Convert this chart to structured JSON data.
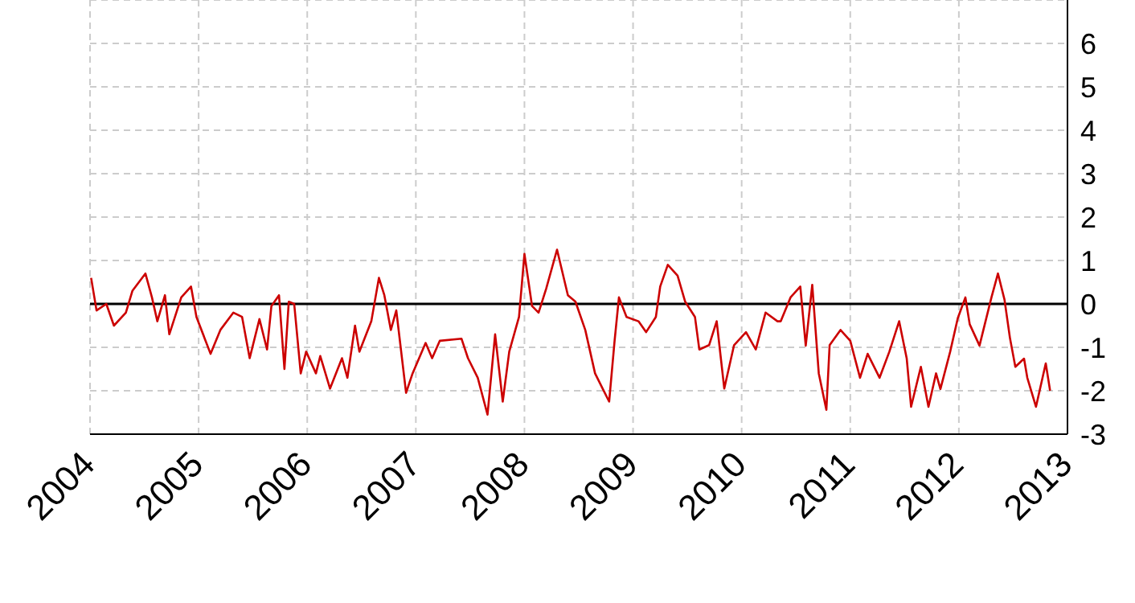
{
  "chart_data": {
    "type": "line",
    "x": [
      2004.01,
      2004.06,
      2004.15,
      2004.22,
      2004.33,
      2004.39,
      2004.51,
      2004.57,
      2004.62,
      2004.69,
      2004.73,
      2004.84,
      2004.93,
      2004.98,
      2005.11,
      2005.2,
      2005.32,
      2005.4,
      2005.47,
      2005.56,
      2005.63,
      2005.67,
      2005.74,
      2005.79,
      2005.83,
      2005.88,
      2005.94,
      2005.99,
      2006.08,
      2006.12,
      2006.21,
      2006.32,
      2006.37,
      2006.44,
      2006.48,
      2006.59,
      2006.66,
      2006.71,
      2006.77,
      2006.82,
      2006.91,
      2006.97,
      2007.09,
      2007.15,
      2007.22,
      2007.42,
      2007.48,
      2007.57,
      2007.66,
      2007.73,
      2007.8,
      2007.86,
      2007.95,
      2008.0,
      2008.07,
      2008.13,
      2008.2,
      2008.3,
      2008.4,
      2008.47,
      2008.56,
      2008.65,
      2008.72,
      2008.78,
      2008.83,
      2008.87,
      2008.94,
      2009.05,
      2009.12,
      2009.21,
      2009.25,
      2009.32,
      2009.41,
      2009.48,
      2009.57,
      2009.61,
      2009.7,
      2009.77,
      2009.84,
      2009.93,
      2010.04,
      2010.13,
      2010.22,
      2010.33,
      2010.36,
      2010.45,
      2010.54,
      2010.59,
      2010.65,
      2010.71,
      2010.78,
      2010.81,
      2010.91,
      2011.0,
      2011.09,
      2011.16,
      2011.27,
      2011.36,
      2011.45,
      2011.52,
      2011.56,
      2011.65,
      2011.72,
      2011.79,
      2011.83,
      2011.92,
      2011.99,
      2012.06,
      2012.1,
      2012.19,
      2012.3,
      2012.36,
      2012.42,
      2012.47,
      2012.52,
      2012.6,
      2012.63,
      2012.71,
      2012.8,
      2012.84
    ],
    "series": [
      {
        "color": "#cc0000",
        "values": [
          0.6,
          -0.15,
          0,
          -0.5,
          -0.2,
          0.3,
          0.7,
          0.15,
          -0.4,
          0.2,
          -0.7,
          0.15,
          0.4,
          -0.3,
          -1.15,
          -0.6,
          -0.2,
          -0.3,
          -1.25,
          -0.35,
          -1.05,
          -0.05,
          0.2,
          -1.5,
          0.05,
          0,
          -1.6,
          -1.1,
          -1.6,
          -1.2,
          -1.95,
          -1.25,
          -1.7,
          -0.5,
          -1.1,
          -0.4,
          0.6,
          0.2,
          -0.6,
          -0.15,
          -2.05,
          -1.6,
          -0.9,
          -1.25,
          -0.85,
          -0.8,
          -1.25,
          -1.7,
          -2.55,
          -0.7,
          -2.25,
          -1.1,
          -0.3,
          1.15,
          -0.05,
          -0.2,
          0.35,
          1.25,
          0.2,
          0.05,
          -0.6,
          -1.6,
          -1.95,
          -2.25,
          -0.85,
          0.15,
          -0.3,
          -0.4,
          -0.65,
          -0.3,
          0.4,
          0.9,
          0.65,
          0.05,
          -0.3,
          -1.05,
          -0.95,
          -0.4,
          -1.95,
          -0.95,
          -0.65,
          -1.05,
          -0.2,
          -0.4,
          -0.4,
          0.15,
          0.4,
          -0.96,
          0.44,
          -1.6,
          -2.44,
          -0.95,
          -0.6,
          -0.85,
          -1.7,
          -1.15,
          -1.7,
          -1.1,
          -0.4,
          -1.26,
          -2.37,
          -1.45,
          -2.37,
          -1.6,
          -1.96,
          -1.1,
          -0.33,
          0.15,
          -0.47,
          -0.96,
          0.15,
          0.7,
          0.1,
          -0.78,
          -1.45,
          -1.26,
          -1.7,
          -2.37,
          -1.37,
          -2.0
        ]
      }
    ],
    "xlim": [
      2004,
      2013
    ],
    "xticks": [
      2004,
      2005,
      2006,
      2007,
      2008,
      2009,
      2010,
      2011,
      2012,
      2013
    ],
    "ylim": [
      -3,
      7
    ],
    "yticks": [
      -3,
      -2,
      -1,
      0,
      1,
      2,
      3,
      4,
      5,
      6
    ],
    "grid": true,
    "ref_lines": [
      {
        "axis": "y",
        "value": 0,
        "color": "#000000"
      }
    ]
  }
}
